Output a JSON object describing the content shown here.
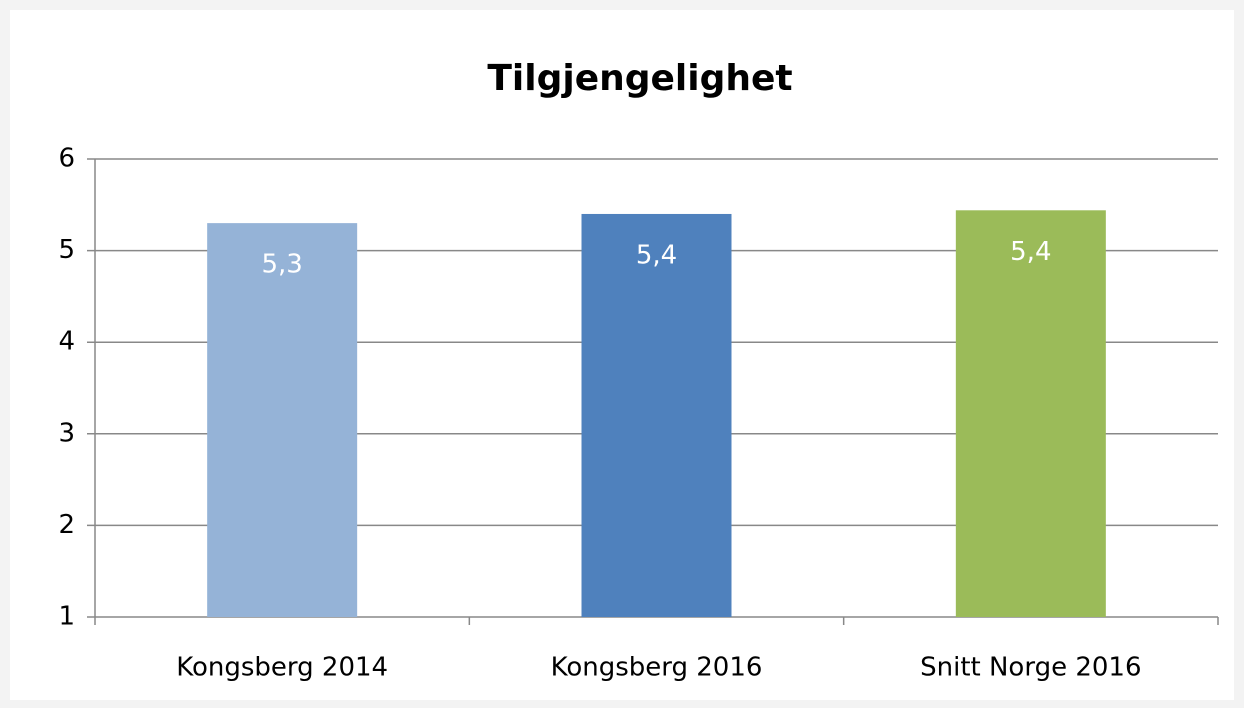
{
  "chart_data": {
    "type": "bar",
    "title": "Tilgjengelighet",
    "categories": [
      "Kongsberg 2014",
      "Kongsberg 2016",
      "Snitt Norge 2016"
    ],
    "values": [
      5.3,
      5.4,
      5.44
    ],
    "value_labels": [
      "5,3",
      "5,4",
      "5,4"
    ],
    "colors": [
      "#95b3d7",
      "#4f81bd",
      "#9bbb59"
    ],
    "ylim": [
      1,
      6
    ],
    "yticks": [
      1,
      2,
      3,
      4,
      5,
      6
    ],
    "grid": true
  }
}
